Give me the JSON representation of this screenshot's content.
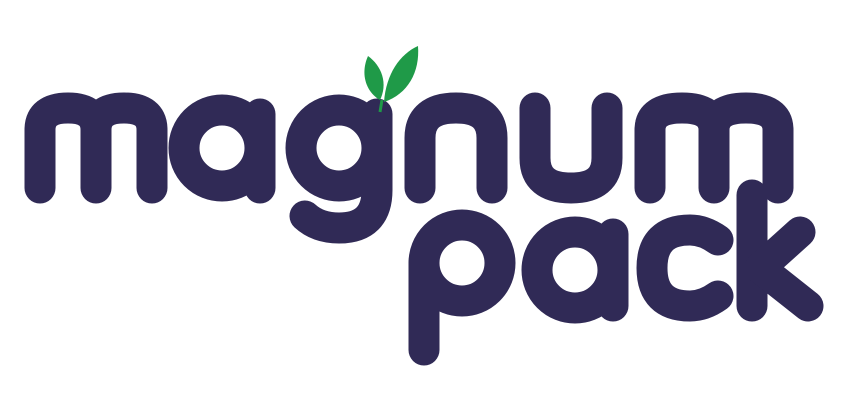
{
  "logo": {
    "wordmark_line1": "magnum",
    "wordmark_line2": "pack",
    "colors": {
      "text": "#302a56",
      "leaf": "#1f9a48",
      "background": "#ffffff"
    },
    "icon": "leaf-sprout-icon"
  }
}
